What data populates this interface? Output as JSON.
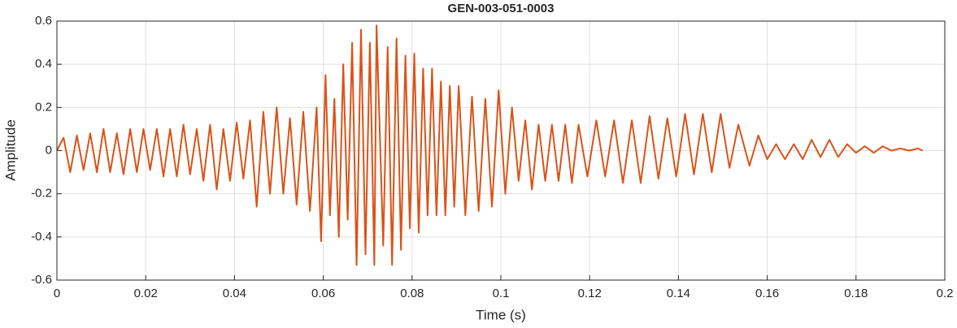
{
  "chart_data": {
    "type": "line",
    "title": "GEN-003-051-0003",
    "x_label": "Time (s)",
    "y_label": "Amplitude",
    "xlim": [
      0,
      0.2
    ],
    "xticks": [
      0,
      0.02,
      0.04,
      0.06,
      0.08,
      0.1,
      0.12,
      0.14,
      0.16,
      0.18,
      0.2
    ],
    "ylim": [
      -0.6,
      0.6
    ],
    "yticks": [
      -0.6,
      -0.4,
      -0.2,
      0,
      0.2,
      0.4,
      0.6
    ],
    "grid": true,
    "series": [
      {
        "name": "Amplitude",
        "color": "#d95319",
        "x": [
          0,
          0.0015,
          0.003,
          0.0045,
          0.006,
          0.0075,
          0.009,
          0.0105,
          0.012,
          0.0135,
          0.015,
          0.0165,
          0.018,
          0.0195,
          0.021,
          0.0225,
          0.024,
          0.0255,
          0.027,
          0.0285,
          0.03,
          0.0315,
          0.033,
          0.0345,
          0.036,
          0.0375,
          0.039,
          0.0405,
          0.042,
          0.0435,
          0.045,
          0.0465,
          0.048,
          0.0495,
          0.051,
          0.0525,
          0.054,
          0.0555,
          0.057,
          0.0585,
          0.0595,
          0.0605,
          0.0615,
          0.0625,
          0.0635,
          0.0645,
          0.0655,
          0.0665,
          0.0675,
          0.0685,
          0.0695,
          0.0705,
          0.0715,
          0.072,
          0.0735,
          0.0745,
          0.0755,
          0.0765,
          0.0775,
          0.0785,
          0.0795,
          0.0805,
          0.0815,
          0.0825,
          0.0835,
          0.0845,
          0.0855,
          0.0865,
          0.0875,
          0.0885,
          0.0895,
          0.0905,
          0.092,
          0.0935,
          0.095,
          0.0965,
          0.098,
          0.0995,
          0.101,
          0.1025,
          0.104,
          0.1055,
          0.107,
          0.1085,
          0.11,
          0.1115,
          0.113,
          0.1145,
          0.116,
          0.1175,
          0.1195,
          0.1215,
          0.1235,
          0.1255,
          0.1275,
          0.1295,
          0.1315,
          0.1335,
          0.1355,
          0.1375,
          0.1395,
          0.1415,
          0.1435,
          0.1455,
          0.1475,
          0.1495,
          0.1515,
          0.1535,
          0.156,
          0.158,
          0.16,
          0.162,
          0.164,
          0.166,
          0.168,
          0.17,
          0.172,
          0.174,
          0.176,
          0.178,
          0.18,
          0.182,
          0.184,
          0.186,
          0.188,
          0.19,
          0.192,
          0.194,
          0.195
        ],
        "values": [
          0,
          0.06,
          -0.1,
          0.07,
          -0.09,
          0.08,
          -0.1,
          0.1,
          -0.1,
          0.08,
          -0.11,
          0.1,
          -0.1,
          0.1,
          -0.09,
          0.1,
          -0.12,
          0.1,
          -0.12,
          0.12,
          -0.11,
          0.1,
          -0.14,
          0.12,
          -0.18,
          0.1,
          -0.14,
          0.13,
          -0.13,
          0.14,
          -0.26,
          0.18,
          -0.2,
          0.2,
          -0.2,
          0.15,
          -0.25,
          0.18,
          -0.28,
          0.2,
          -0.42,
          0.35,
          -0.3,
          0.24,
          -0.4,
          0.4,
          -0.32,
          0.5,
          -0.53,
          0.56,
          -0.48,
          0.5,
          -0.53,
          0.58,
          -0.44,
          0.48,
          -0.53,
          0.52,
          -0.46,
          0.44,
          -0.36,
          0.45,
          -0.38,
          0.38,
          -0.3,
          0.38,
          -0.3,
          0.32,
          -0.3,
          0.3,
          -0.26,
          0.3,
          -0.3,
          0.25,
          -0.28,
          0.24,
          -0.26,
          0.28,
          -0.2,
          0.2,
          -0.14,
          0.14,
          -0.18,
          0.12,
          -0.14,
          0.12,
          -0.14,
          0.12,
          -0.15,
          0.12,
          -0.12,
          0.14,
          -0.12,
          0.14,
          -0.15,
          0.14,
          -0.15,
          0.16,
          -0.13,
          0.15,
          -0.12,
          0.17,
          -0.11,
          0.17,
          -0.1,
          0.17,
          -0.08,
          0.12,
          -0.07,
          0.07,
          -0.04,
          0.03,
          -0.04,
          0.03,
          -0.04,
          0.05,
          -0.03,
          0.05,
          -0.03,
          0.03,
          -0.01,
          0.02,
          -0.01,
          0.02,
          0,
          0.01,
          0,
          0.01,
          0
        ]
      }
    ]
  }
}
